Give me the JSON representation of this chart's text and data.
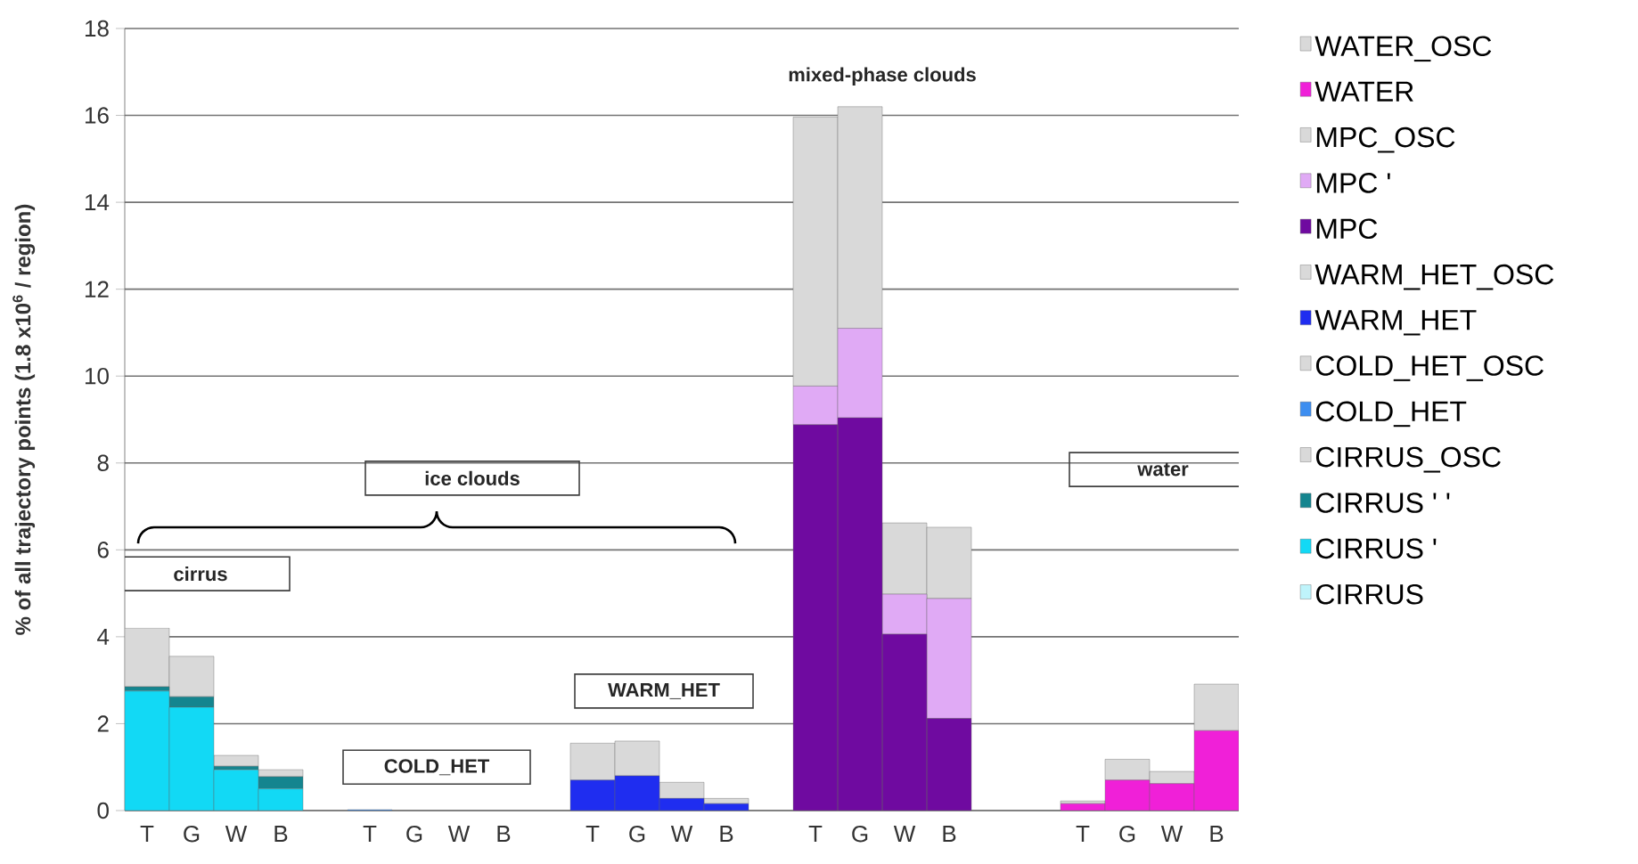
{
  "chart_data": {
    "type": "bar",
    "stacked": true,
    "ylabel": "% of all trajectory points (1.8 x10$^{6}$ / region)",
    "categories": [
      "T",
      "G",
      "W",
      "B",
      null,
      "T",
      "G",
      "W",
      "B",
      null,
      "T",
      "G",
      "W",
      "B",
      null,
      "T",
      "G",
      "W",
      "B",
      null,
      null,
      "T",
      "G",
      "W",
      "B"
    ],
    "ylim": [
      0,
      18
    ],
    "yticks": [
      0,
      2,
      4,
      6,
      8,
      10,
      12,
      14,
      16,
      18
    ],
    "grid": "y",
    "legend": "right",
    "annotations": [
      "cirrus",
      "COLD_HET",
      "WARM_HET",
      "ice clouds",
      "mixed-phase clouds",
      "water"
    ],
    "series": [
      {
        "name": "CIRRUS",
        "color": "#bff4fb",
        "values": [
          null,
          null,
          null,
          null,
          null,
          null,
          null,
          null,
          null,
          null,
          null,
          null,
          null,
          null,
          null,
          null,
          null,
          null,
          null,
          null,
          null,
          null,
          null,
          null,
          null
        ]
      },
      {
        "name": "CIRRUS '",
        "color": "#12d9f5",
        "values": [
          2.75,
          2.38,
          0.94,
          0.5,
          null,
          null,
          null,
          null,
          null,
          null,
          null,
          null,
          null,
          null,
          null,
          null,
          null,
          null,
          null,
          null,
          null,
          null,
          null,
          null,
          null
        ]
      },
      {
        "name": "CIRRUS ' '",
        "color": "#14858f",
        "values": [
          0.1,
          0.24,
          0.08,
          0.28,
          null,
          null,
          null,
          null,
          null,
          null,
          null,
          null,
          null,
          null,
          null,
          null,
          null,
          null,
          null,
          null,
          null,
          null,
          null,
          null,
          null
        ]
      },
      {
        "name": "CIRRUS_OSC",
        "color": "#d9d9d9",
        "values": [
          1.35,
          0.93,
          0.25,
          0.16,
          null,
          null,
          null,
          null,
          null,
          null,
          null,
          null,
          null,
          null,
          null,
          null,
          null,
          null,
          null,
          null,
          null,
          null,
          null,
          null,
          null
        ]
      },
      {
        "name": "COLD_HET",
        "color": "#3d8ef0",
        "values": [
          null,
          null,
          null,
          null,
          null,
          0.02,
          null,
          null,
          null,
          null,
          null,
          null,
          null,
          null,
          null,
          null,
          null,
          null,
          null,
          null,
          null,
          null,
          null,
          null,
          null
        ]
      },
      {
        "name": "COLD_HET_OSC",
        "color": "#d9d9d9",
        "values": [
          null,
          null,
          null,
          null,
          null,
          null,
          null,
          null,
          null,
          null,
          null,
          null,
          null,
          null,
          null,
          null,
          null,
          null,
          null,
          null,
          null,
          null,
          null,
          null,
          null
        ]
      },
      {
        "name": "WARM_HET",
        "color": "#1f2df0",
        "values": [
          null,
          null,
          null,
          null,
          null,
          null,
          null,
          null,
          null,
          null,
          0.7,
          0.8,
          0.28,
          0.16,
          null,
          null,
          null,
          null,
          null,
          null,
          null,
          null,
          null,
          null,
          null
        ]
      },
      {
        "name": "WARM_HET_OSC",
        "color": "#d9d9d9",
        "values": [
          null,
          null,
          null,
          null,
          null,
          null,
          null,
          null,
          null,
          null,
          0.85,
          0.8,
          0.37,
          0.12,
          null,
          null,
          null,
          null,
          null,
          null,
          null,
          null,
          null,
          null,
          null
        ]
      },
      {
        "name": "MPC",
        "color": "#6f0aa0",
        "values": [
          null,
          null,
          null,
          null,
          null,
          null,
          null,
          null,
          null,
          null,
          null,
          null,
          null,
          null,
          null,
          8.88,
          9.04,
          4.06,
          2.12,
          null,
          null,
          null,
          null,
          null,
          null
        ]
      },
      {
        "name": "MPC '",
        "color": "#e0aaf5",
        "values": [
          null,
          null,
          null,
          null,
          null,
          null,
          null,
          null,
          null,
          null,
          null,
          null,
          null,
          null,
          null,
          0.89,
          2.06,
          0.92,
          2.76,
          null,
          null,
          null,
          null,
          null,
          null
        ]
      },
      {
        "name": "MPC_OSC",
        "color": "#d9d9d9",
        "values": [
          null,
          null,
          null,
          null,
          null,
          null,
          null,
          null,
          null,
          null,
          null,
          null,
          null,
          null,
          null,
          6.19,
          5.1,
          1.64,
          1.64,
          null,
          null,
          null,
          null,
          null,
          null
        ]
      },
      {
        "name": "WATER",
        "color": "#f020d8",
        "values": [
          null,
          null,
          null,
          null,
          null,
          null,
          null,
          null,
          null,
          null,
          null,
          null,
          null,
          null,
          null,
          null,
          null,
          null,
          null,
          null,
          null,
          0.16,
          0.7,
          0.62,
          1.84
        ]
      },
      {
        "name": "WATER_OSC",
        "color": "#d9d9d9",
        "values": [
          null,
          null,
          null,
          null,
          null,
          null,
          null,
          null,
          null,
          null,
          null,
          null,
          null,
          null,
          null,
          null,
          null,
          null,
          null,
          null,
          null,
          0.06,
          0.48,
          0.28,
          1.07
        ]
      }
    ]
  }
}
